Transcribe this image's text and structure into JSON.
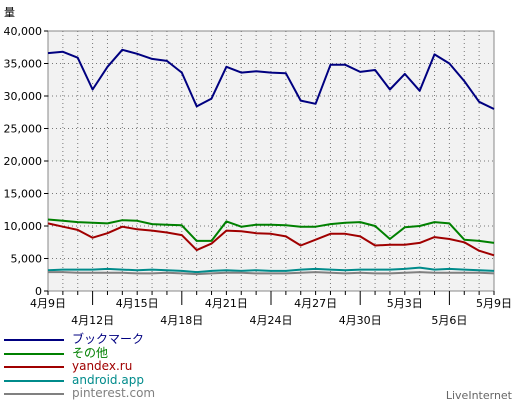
{
  "chart_data": {
    "type": "line",
    "title": "",
    "ylabel": "量",
    "ylim": [
      0,
      40000
    ],
    "yticks": [
      0,
      5000,
      10000,
      15000,
      20000,
      25000,
      30000,
      35000,
      40000
    ],
    "ytick_labels": [
      "0",
      "5,000",
      "10,000",
      "15,000",
      "20,000",
      "25,000",
      "30,000",
      "35,000",
      "40,000"
    ],
    "x": [
      "4月9日",
      "4月10日",
      "4月11日",
      "4月12日",
      "4月13日",
      "4月14日",
      "4月15日",
      "4月16日",
      "4月17日",
      "4月18日",
      "4月19日",
      "4月20日",
      "4月21日",
      "4月22日",
      "4月23日",
      "4月24日",
      "4月25日",
      "4月26日",
      "4月27日",
      "4月28日",
      "4月29日",
      "4月30日",
      "5月1日",
      "5月2日",
      "5月3日",
      "5月4日",
      "5月5日",
      "5月6日",
      "5月7日",
      "5月8日",
      "5月9日"
    ],
    "xtick_labels": [
      {
        "index": 0,
        "label": "4月9日",
        "row": 0
      },
      {
        "index": 3,
        "label": "4月12日",
        "row": 1
      },
      {
        "index": 6,
        "label": "4月15日",
        "row": 0
      },
      {
        "index": 9,
        "label": "4月18日",
        "row": 1
      },
      {
        "index": 12,
        "label": "4月21日",
        "row": 0
      },
      {
        "index": 15,
        "label": "4月24日",
        "row": 1
      },
      {
        "index": 18,
        "label": "4月27日",
        "row": 0
      },
      {
        "index": 21,
        "label": "4月30日",
        "row": 1
      },
      {
        "index": 24,
        "label": "5月3日",
        "row": 0
      },
      {
        "index": 27,
        "label": "5月6日",
        "row": 1
      },
      {
        "index": 30,
        "label": "5月9日",
        "row": 0
      }
    ],
    "grid": true,
    "legend_position": "bottom-left",
    "series": [
      {
        "name": "ブックマーク",
        "color": "#000080",
        "values": [
          36600,
          36800,
          35900,
          31000,
          34500,
          37100,
          36500,
          35700,
          35400,
          33600,
          28400,
          29600,
          34500,
          33600,
          33800,
          33600,
          33500,
          29300,
          28800,
          34800,
          34800,
          33700,
          34000,
          31000,
          33400,
          30800,
          36400,
          35000,
          32300,
          29100,
          28000
        ]
      },
      {
        "name": "その他",
        "color": "#008000",
        "values": [
          11000,
          10800,
          10600,
          10500,
          10400,
          10900,
          10800,
          10300,
          10200,
          10100,
          7700,
          7700,
          10700,
          9900,
          10200,
          10200,
          10100,
          9900,
          9900,
          10300,
          10500,
          10600,
          10000,
          8000,
          9800,
          10000,
          10600,
          10400,
          7900,
          7700,
          7400
        ]
      },
      {
        "name": "yandex.ru",
        "color": "#a00000",
        "values": [
          10400,
          9900,
          9400,
          8200,
          8900,
          9900,
          9500,
          9300,
          9000,
          8600,
          6300,
          7300,
          9300,
          9200,
          8900,
          8800,
          8400,
          7000,
          7900,
          8800,
          8800,
          8400,
          7000,
          7100,
          7100,
          7400,
          8300,
          8000,
          7500,
          6200,
          5500
        ]
      },
      {
        "name": "android.app",
        "color": "#008b8b",
        "values": [
          3200,
          3300,
          3300,
          3300,
          3400,
          3300,
          3200,
          3300,
          3200,
          3100,
          2900,
          3100,
          3200,
          3100,
          3200,
          3100,
          3100,
          3300,
          3400,
          3300,
          3200,
          3300,
          3300,
          3300,
          3400,
          3600,
          3300,
          3400,
          3300,
          3200,
          3100
        ]
      },
      {
        "name": "pinterest.com",
        "color": "#808080",
        "values": [
          2900,
          2900,
          2800,
          2800,
          2800,
          2800,
          2700,
          2700,
          2800,
          2700,
          2600,
          2700,
          2800,
          2800,
          2700,
          2700,
          2700,
          2800,
          2900,
          2800,
          2700,
          2800,
          2700,
          2700,
          2800,
          2900,
          2800,
          2800,
          2800,
          2800,
          2700
        ]
      }
    ]
  },
  "brand": "LiveInternet"
}
